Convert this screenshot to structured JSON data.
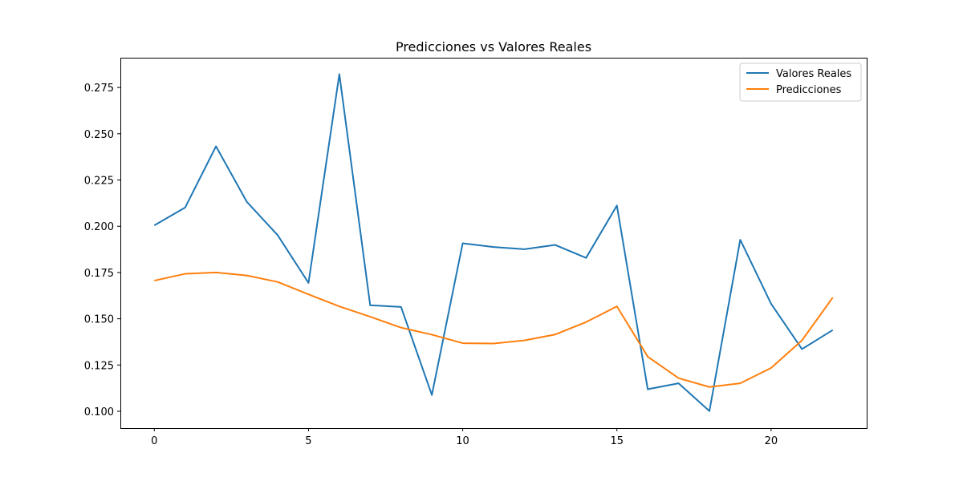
{
  "chart_data": {
    "type": "line",
    "title": "Predicciones vs Valores Reales",
    "xlabel": "",
    "ylabel": "",
    "xlim": [
      -1.1,
      23.1
    ],
    "ylim": [
      0.0909,
      0.2911
    ],
    "x_ticks": [
      0,
      5,
      10,
      15,
      20
    ],
    "y_ticks": [
      0.1,
      0.125,
      0.15,
      0.175,
      0.2,
      0.225,
      0.25,
      0.275
    ],
    "y_tick_labels": [
      "0.100",
      "0.125",
      "0.150",
      "0.175",
      "0.200",
      "0.225",
      "0.250",
      "0.275"
    ],
    "grid": false,
    "legend_position": "top-right",
    "x": [
      0,
      1,
      2,
      3,
      4,
      5,
      6,
      7,
      8,
      9,
      10,
      11,
      12,
      13,
      14,
      15,
      16,
      17,
      18,
      19,
      20,
      21,
      22
    ],
    "series": [
      {
        "name": "Valores Reales",
        "color": "#1f77b4",
        "values": [
          0.2005,
          0.2101,
          0.2432,
          0.2132,
          0.1952,
          0.1694,
          0.2822,
          0.1573,
          0.1564,
          0.1088,
          0.1908,
          0.1888,
          0.1876,
          0.1899,
          0.1829,
          0.2112,
          0.1119,
          0.1151,
          0.1001,
          0.1927,
          0.1581,
          0.1336,
          0.1439
        ]
      },
      {
        "name": "Predicciones",
        "color": "#ff7f0e",
        "values": [
          0.1706,
          0.1743,
          0.175,
          0.1734,
          0.1699,
          0.1632,
          0.1567,
          0.1511,
          0.1452,
          0.1414,
          0.1368,
          0.1366,
          0.1383,
          0.1415,
          0.1482,
          0.1567,
          0.1295,
          0.1179,
          0.1131,
          0.1151,
          0.1234,
          0.1383,
          0.1615
        ]
      }
    ]
  }
}
